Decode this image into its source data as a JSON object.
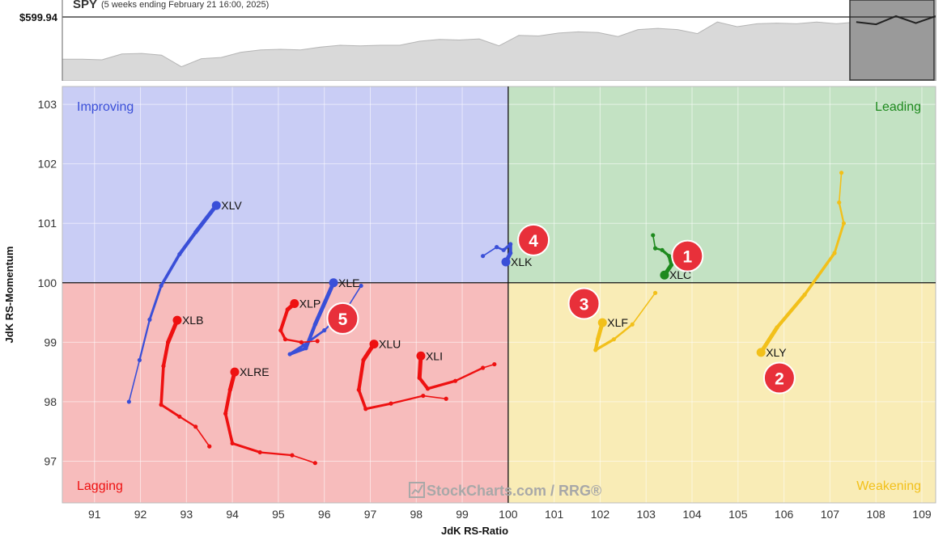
{
  "header": {
    "symbol": "SPY",
    "period": "(5 weeks ending February 21 16:00, 2025)",
    "last_price": "$599.94"
  },
  "colors": {
    "improving_bg": "#c9cdf5",
    "leading_bg": "#c3e2c3",
    "lagging_bg": "#f7bcbc",
    "weakening_bg": "#f9ecb6",
    "blue": "#3a4fd8",
    "green": "#1e8a1e",
    "red": "#ee1111",
    "yellow": "#f2c01a",
    "badge": "#e8303a"
  },
  "watermark": "StockCharts.com / RRG®",
  "chart_data": {
    "type": "scatter",
    "xlabel": "JdK RS-Ratio",
    "ylabel": "JdK RS-Momentum",
    "xlim": [
      90.3,
      109.3
    ],
    "ylim": [
      96.3,
      103.3
    ],
    "xticks": [
      91,
      92,
      93,
      94,
      95,
      96,
      97,
      98,
      99,
      100,
      101,
      102,
      103,
      104,
      105,
      106,
      107,
      108,
      109
    ],
    "yticks": [
      97,
      98,
      99,
      100,
      101,
      102,
      103
    ],
    "center": [
      100,
      100
    ],
    "quadrants": [
      {
        "name": "Improving",
        "position": "top-left",
        "color": "#3a4fd8"
      },
      {
        "name": "Leading",
        "position": "top-right",
        "color": "#1e8a1e"
      },
      {
        "name": "Lagging",
        "position": "bottom-left",
        "color": "#ee1111"
      },
      {
        "name": "Weakening",
        "position": "bottom-right",
        "color": "#f2c01a"
      }
    ],
    "series": [
      {
        "name": "XLV",
        "color": "blue",
        "points": [
          [
            91.75,
            98.0
          ],
          [
            91.98,
            98.7
          ],
          [
            92.2,
            99.38
          ],
          [
            92.45,
            99.95
          ],
          [
            92.85,
            100.48
          ],
          [
            93.2,
            100.85
          ],
          [
            93.65,
            101.3
          ]
        ]
      },
      {
        "name": "XLE",
        "color": "blue",
        "points": [
          [
            96.8,
            99.95
          ],
          [
            96.5,
            99.58
          ],
          [
            96.0,
            99.2
          ],
          [
            95.55,
            98.95
          ],
          [
            95.25,
            98.8
          ],
          [
            95.6,
            98.9
          ],
          [
            95.8,
            99.3
          ],
          [
            96.2,
            100.0
          ]
        ]
      },
      {
        "name": "XLK",
        "color": "blue",
        "points": [
          [
            99.45,
            100.45
          ],
          [
            99.75,
            100.6
          ],
          [
            99.9,
            100.55
          ],
          [
            100.05,
            100.65
          ],
          [
            100.05,
            100.5
          ],
          [
            99.95,
            100.35
          ]
        ]
      },
      {
        "name": "XLC",
        "color": "green",
        "points": [
          [
            103.15,
            100.8
          ],
          [
            103.2,
            100.58
          ],
          [
            103.35,
            100.55
          ],
          [
            103.5,
            100.45
          ],
          [
            103.55,
            100.3
          ],
          [
            103.4,
            100.13
          ]
        ]
      },
      {
        "name": "XLY",
        "color": "yellow",
        "points": [
          [
            107.25,
            101.85
          ],
          [
            107.2,
            101.35
          ],
          [
            107.3,
            101.0
          ],
          [
            107.1,
            100.5
          ],
          [
            106.45,
            99.8
          ],
          [
            105.85,
            99.25
          ],
          [
            105.5,
            98.83
          ]
        ]
      },
      {
        "name": "XLF",
        "color": "yellow",
        "points": [
          [
            103.2,
            99.83
          ],
          [
            102.7,
            99.3
          ],
          [
            102.3,
            99.05
          ],
          [
            101.9,
            98.87
          ],
          [
            101.95,
            99.05
          ],
          [
            102.05,
            99.33
          ]
        ]
      },
      {
        "name": "XLP",
        "color": "red",
        "points": [
          [
            95.85,
            99.02
          ],
          [
            95.5,
            99.0
          ],
          [
            95.15,
            99.05
          ],
          [
            95.05,
            99.2
          ],
          [
            95.2,
            99.55
          ],
          [
            95.35,
            99.65
          ]
        ]
      },
      {
        "name": "XLU",
        "color": "red",
        "points": [
          [
            98.65,
            98.05
          ],
          [
            98.15,
            98.1
          ],
          [
            97.45,
            97.97
          ],
          [
            96.9,
            97.88
          ],
          [
            96.75,
            98.2
          ],
          [
            96.85,
            98.7
          ],
          [
            97.08,
            98.97
          ]
        ]
      },
      {
        "name": "XLI",
        "color": "red",
        "points": [
          [
            99.7,
            98.63
          ],
          [
            99.45,
            98.57
          ],
          [
            98.85,
            98.35
          ],
          [
            98.25,
            98.22
          ],
          [
            98.07,
            98.4
          ],
          [
            98.1,
            98.77
          ]
        ]
      },
      {
        "name": "XLB",
        "color": "red",
        "points": [
          [
            93.5,
            97.25
          ],
          [
            93.2,
            97.58
          ],
          [
            92.85,
            97.75
          ],
          [
            92.45,
            97.95
          ],
          [
            92.5,
            98.6
          ],
          [
            92.6,
            99.0
          ],
          [
            92.8,
            99.37
          ]
        ]
      },
      {
        "name": "XLRE",
        "color": "red",
        "points": [
          [
            95.8,
            96.97
          ],
          [
            95.3,
            97.1
          ],
          [
            94.6,
            97.15
          ],
          [
            94.0,
            97.3
          ],
          [
            93.85,
            97.8
          ],
          [
            93.95,
            98.2
          ],
          [
            94.05,
            98.5
          ]
        ]
      }
    ],
    "annotations": [
      {
        "text": "1",
        "x": 103.9,
        "y": 100.45
      },
      {
        "text": "2",
        "x": 105.9,
        "y": 98.4
      },
      {
        "text": "3",
        "x": 101.65,
        "y": 99.65
      },
      {
        "text": "4",
        "x": 100.55,
        "y": 100.72
      },
      {
        "text": "5",
        "x": 96.4,
        "y": 99.4
      }
    ],
    "benchmark": {
      "name": "SPY",
      "values": [
        0.26,
        0.26,
        0.25,
        0.35,
        0.36,
        0.33,
        0.13,
        0.27,
        0.29,
        0.38,
        0.42,
        0.43,
        0.42,
        0.47,
        0.5,
        0.49,
        0.5,
        0.5,
        0.57,
        0.6,
        0.59,
        0.61,
        0.49,
        0.67,
        0.66,
        0.71,
        0.73,
        0.72,
        0.65,
        0.77,
        0.79,
        0.77,
        0.7,
        0.9,
        0.82,
        0.87,
        0.88,
        0.87,
        0.9,
        0.87,
        0.9,
        0.86,
        1.0,
        0.88,
        1.0
      ]
    }
  }
}
